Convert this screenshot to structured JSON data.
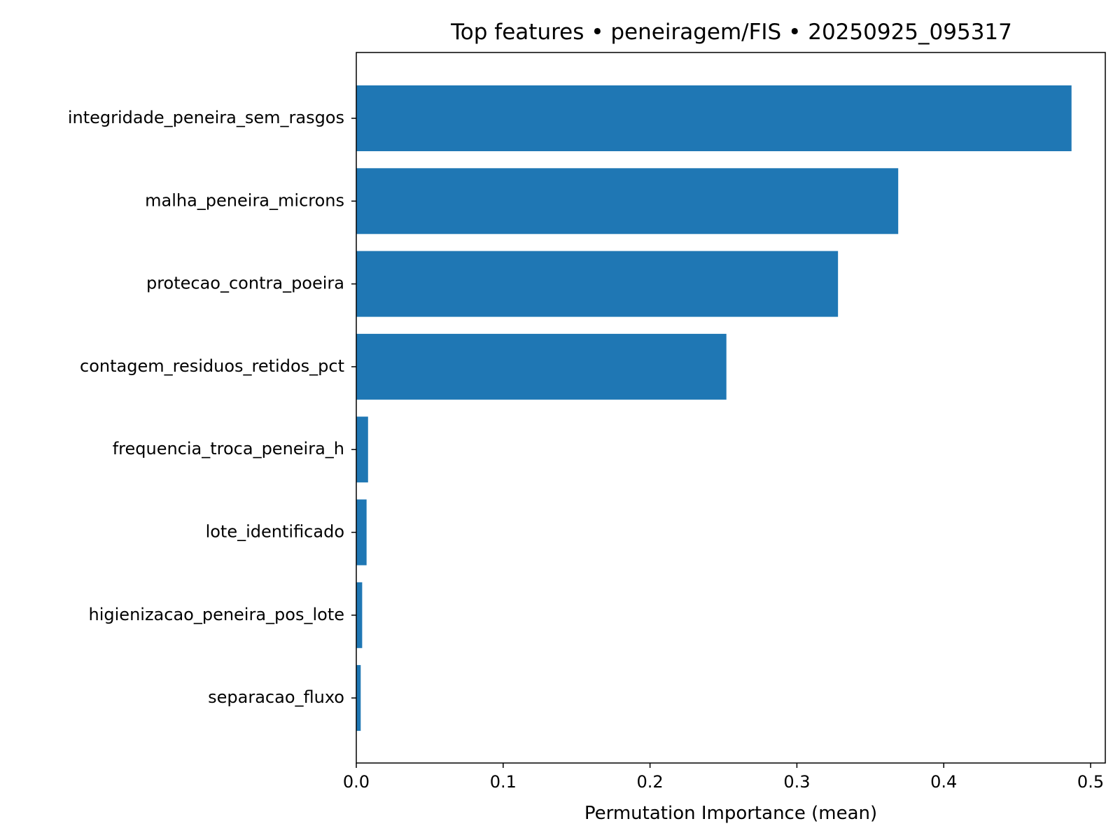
{
  "chart_data": {
    "type": "bar",
    "orientation": "horizontal",
    "title": "Top features • peneiragem/FIS • 20250925_095317",
    "xlabel": "Permutation Importance (mean)",
    "ylabel": "",
    "xlim": [
      0,
      0.51
    ],
    "xticks": [
      0.0,
      0.1,
      0.2,
      0.3,
      0.4,
      0.5
    ],
    "xtick_labels": [
      "0.0",
      "0.1",
      "0.2",
      "0.3",
      "0.4",
      "0.5"
    ],
    "categories": [
      "integridade_peneira_sem_rasgos",
      "malha_peneira_microns",
      "protecao_contra_poeira",
      "contagem_residuos_retidos_pct",
      "frequencia_troca_peneira_h",
      "lote_identificado",
      "higienizacao_peneira_pos_lote",
      "separacao_fluxo"
    ],
    "values": [
      0.487,
      0.369,
      0.328,
      0.252,
      0.008,
      0.007,
      0.004,
      0.003
    ],
    "bar_color": "#1f77b4",
    "grid": false,
    "legend": "none"
  }
}
